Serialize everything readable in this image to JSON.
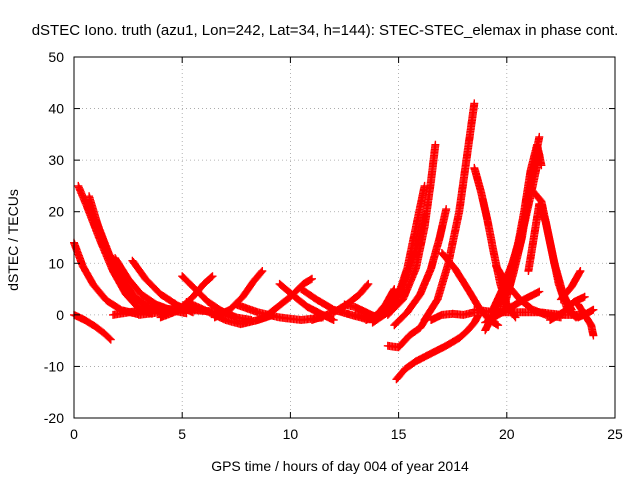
{
  "chart_data": {
    "type": "scatter",
    "title": "dSTEC Iono. truth (azu1, Lon=242, Lat=34, h=144): STEC-STEC_elemax in phase cont.",
    "xlabel": "GPS time / hours of day 004 of year 2014",
    "ylabel": "dSTEC  / TECUs",
    "xlim": [
      0,
      25
    ],
    "ylim": [
      -20,
      50
    ],
    "xticks": [
      "0",
      "5",
      "10",
      "15",
      "20",
      "25"
    ],
    "yticks": [
      "-20",
      "-10",
      "0",
      "10",
      "20",
      "30",
      "40",
      "50"
    ],
    "xtick_values": [
      0,
      5,
      10,
      15,
      20,
      25
    ],
    "ytick_values": [
      -20,
      -10,
      0,
      10,
      20,
      30,
      40,
      50
    ],
    "grid": true,
    "marker": "+",
    "color": "#ff0000",
    "series": [
      {
        "points": [
          [
            0.0,
            0.0
          ],
          [
            0.5,
            -1.0
          ],
          [
            1.0,
            -2.3
          ],
          [
            1.4,
            -3.6
          ],
          [
            1.7,
            -4.8
          ]
        ]
      },
      {
        "points": [
          [
            0.0,
            14.0
          ],
          [
            0.4,
            9.5
          ],
          [
            0.9,
            5.8
          ],
          [
            1.5,
            2.8
          ],
          [
            2.2,
            0.9
          ],
          [
            3.0,
            0.1
          ]
        ]
      },
      {
        "points": [
          [
            0.2,
            25.0
          ],
          [
            0.6,
            21.0
          ],
          [
            1.2,
            14.5
          ],
          [
            1.8,
            8.5
          ],
          [
            2.4,
            4.0
          ],
          [
            3.0,
            1.2
          ],
          [
            3.6,
            0.2
          ]
        ]
      },
      {
        "points": [
          [
            0.7,
            23.0
          ],
          [
            1.2,
            16.0
          ],
          [
            1.8,
            9.5
          ],
          [
            2.5,
            4.8
          ],
          [
            3.2,
            2.0
          ],
          [
            4.0,
            0.6
          ]
        ]
      },
      {
        "points": [
          [
            1.0,
            18.5
          ],
          [
            1.6,
            12.0
          ],
          [
            2.2,
            7.0
          ],
          [
            2.8,
            3.5
          ],
          [
            3.5,
            1.3
          ],
          [
            4.2,
            0.3
          ]
        ]
      },
      {
        "points": [
          [
            1.9,
            11.0
          ],
          [
            2.5,
            7.0
          ],
          [
            3.1,
            4.0
          ],
          [
            3.8,
            2.0
          ],
          [
            4.5,
            0.9
          ],
          [
            5.2,
            0.3
          ]
        ]
      },
      {
        "points": [
          [
            2.7,
            10.5
          ],
          [
            3.3,
            7.0
          ],
          [
            4.0,
            4.0
          ],
          [
            4.8,
            1.8
          ],
          [
            5.5,
            0.5
          ]
        ]
      },
      {
        "points": [
          [
            1.8,
            0.0
          ],
          [
            3.0,
            0.8
          ],
          [
            4.0,
            1.2
          ],
          [
            5.0,
            1.0
          ],
          [
            6.0,
            0.8
          ],
          [
            7.0,
            0.5
          ]
        ]
      },
      {
        "points": [
          [
            3.0,
            0.0
          ],
          [
            4.0,
            0.5
          ],
          [
            5.0,
            1.5
          ],
          [
            6.0,
            0.8
          ],
          [
            7.0,
            0.2
          ]
        ]
      },
      {
        "points": [
          [
            4.0,
            -0.5
          ],
          [
            4.8,
            0.8
          ],
          [
            5.5,
            3.5
          ],
          [
            6.0,
            6.0
          ],
          [
            6.4,
            7.5
          ]
        ]
      },
      {
        "points": [
          [
            5.0,
            7.5
          ],
          [
            5.6,
            5.0
          ],
          [
            6.2,
            2.5
          ],
          [
            6.8,
            0.8
          ],
          [
            7.5,
            -0.5
          ],
          [
            8.2,
            -1.0
          ]
        ]
      },
      {
        "points": [
          [
            5.2,
            2.5
          ],
          [
            6.0,
            1.0
          ],
          [
            7.0,
            -1.0
          ],
          [
            7.7,
            -1.8
          ],
          [
            8.5,
            -1.0
          ],
          [
            9.2,
            0.0
          ]
        ]
      },
      {
        "points": [
          [
            6.5,
            -0.5
          ],
          [
            7.2,
            1.0
          ],
          [
            7.8,
            3.5
          ],
          [
            8.3,
            6.5
          ],
          [
            8.7,
            8.5
          ]
        ]
      },
      {
        "points": [
          [
            7.5,
            2.0
          ],
          [
            8.5,
            0.5
          ],
          [
            9.5,
            -0.5
          ],
          [
            10.5,
            -1.0
          ],
          [
            11.5,
            -0.5
          ]
        ]
      },
      {
        "points": [
          [
            8.8,
            -0.5
          ],
          [
            9.4,
            1.5
          ],
          [
            10.0,
            3.5
          ],
          [
            10.6,
            6.0
          ],
          [
            11.0,
            7.0
          ]
        ]
      },
      {
        "points": [
          [
            9.5,
            6.0
          ],
          [
            10.2,
            3.5
          ],
          [
            10.8,
            1.5
          ],
          [
            11.5,
            0.0
          ],
          [
            12.0,
            -1.0
          ]
        ]
      },
      {
        "points": [
          [
            10.5,
            5.0
          ],
          [
            11.2,
            3.0
          ],
          [
            12.0,
            1.0
          ],
          [
            12.8,
            0.0
          ],
          [
            13.5,
            -0.8
          ]
        ]
      },
      {
        "points": [
          [
            11.0,
            -1.0
          ],
          [
            12.0,
            0.5
          ],
          [
            12.6,
            2.0
          ],
          [
            13.2,
            4.0
          ],
          [
            13.6,
            6.0
          ]
        ]
      },
      {
        "points": [
          [
            12.5,
            2.0
          ],
          [
            13.0,
            1.5
          ],
          [
            13.5,
            0.5
          ],
          [
            14.0,
            -0.5
          ],
          [
            14.5,
            0.8
          ]
        ]
      },
      {
        "points": [
          [
            13.5,
            -1.0
          ],
          [
            14.0,
            0.0
          ],
          [
            14.4,
            2.0
          ],
          [
            14.8,
            5.0
          ]
        ]
      },
      {
        "points": [
          [
            13.0,
            0.0
          ],
          [
            13.8,
            -0.5
          ],
          [
            14.5,
            1.0
          ],
          [
            15.0,
            4.0
          ],
          [
            15.4,
            9.0
          ],
          [
            15.7,
            15.0
          ],
          [
            16.0,
            21.0
          ],
          [
            16.2,
            25.0
          ]
        ]
      },
      {
        "points": [
          [
            13.8,
            -1.5
          ],
          [
            14.5,
            0.5
          ],
          [
            15.0,
            4.0
          ],
          [
            15.5,
            9.0
          ],
          [
            15.9,
            14.0
          ],
          [
            16.2,
            19.5
          ]
        ]
      },
      {
        "points": [
          [
            14.5,
            0.0
          ],
          [
            15.2,
            3.0
          ],
          [
            15.8,
            9.0
          ],
          [
            16.2,
            17.0
          ],
          [
            16.5,
            26.0
          ],
          [
            16.7,
            33.0
          ]
        ]
      },
      {
        "points": [
          [
            14.8,
            -2.0
          ],
          [
            15.4,
            0.5
          ],
          [
            16.0,
            4.0
          ],
          [
            16.5,
            9.0
          ],
          [
            16.9,
            15.0
          ],
          [
            17.2,
            20.5
          ]
        ]
      },
      {
        "points": [
          [
            16.2,
            -1.0
          ],
          [
            16.8,
            3.0
          ],
          [
            17.3,
            10.0
          ],
          [
            17.8,
            20.0
          ],
          [
            18.2,
            32.0
          ],
          [
            18.5,
            41.0
          ]
        ]
      },
      {
        "points": [
          [
            14.5,
            -6.0
          ],
          [
            15.0,
            -6.3
          ],
          [
            15.5,
            -4.0
          ],
          [
            16.0,
            -2.5
          ],
          [
            16.3,
            -0.5
          ]
        ]
      },
      {
        "points": [
          [
            14.9,
            -12.5
          ],
          [
            15.3,
            -10.5
          ],
          [
            15.8,
            -9.0
          ],
          [
            16.5,
            -7.5
          ],
          [
            17.2,
            -6.0
          ],
          [
            17.8,
            -4.5
          ],
          [
            18.2,
            -3.0
          ],
          [
            18.5,
            -1.5
          ],
          [
            18.7,
            0.0
          ]
        ]
      },
      {
        "points": [
          [
            16.5,
            -1.0
          ],
          [
            17.0,
            0.0
          ],
          [
            17.5,
            0.2
          ],
          [
            18.0,
            0.0
          ],
          [
            18.5,
            0.5
          ]
        ]
      },
      {
        "points": [
          [
            17.0,
            12.0
          ],
          [
            17.6,
            9.0
          ],
          [
            18.2,
            5.0
          ],
          [
            18.7,
            1.5
          ],
          [
            19.2,
            -1.0
          ],
          [
            19.6,
            -2.0
          ]
        ]
      },
      {
        "points": [
          [
            18.5,
            28.5
          ],
          [
            18.8,
            24.0
          ],
          [
            19.1,
            18.5
          ],
          [
            19.4,
            12.0
          ],
          [
            19.7,
            6.0
          ],
          [
            20.0,
            2.0
          ],
          [
            20.4,
            -0.5
          ]
        ]
      },
      {
        "points": [
          [
            19.0,
            -3.0
          ],
          [
            19.5,
            1.0
          ],
          [
            20.0,
            6.0
          ],
          [
            20.4,
            12.0
          ],
          [
            20.8,
            18.0
          ]
        ]
      },
      {
        "points": [
          [
            19.3,
            0.5
          ],
          [
            19.8,
            5.0
          ],
          [
            20.3,
            10.5
          ],
          [
            20.8,
            17.5
          ],
          [
            21.2,
            25.0
          ],
          [
            21.5,
            31.0
          ]
        ]
      },
      {
        "points": [
          [
            19.8,
            0.5
          ],
          [
            20.3,
            8.0
          ],
          [
            20.7,
            15.0
          ],
          [
            21.0,
            23.0
          ],
          [
            21.3,
            30.0
          ],
          [
            21.5,
            34.5
          ]
        ]
      },
      {
        "points": [
          [
            20.0,
            4.0
          ],
          [
            20.4,
            11.0
          ],
          [
            20.8,
            20.0
          ],
          [
            21.1,
            28.0
          ],
          [
            21.4,
            33.0
          ],
          [
            21.6,
            29.0
          ]
        ]
      },
      {
        "points": [
          [
            21.2,
            24.0
          ],
          [
            21.6,
            22.0
          ],
          [
            22.0,
            14.0
          ],
          [
            22.4,
            6.0
          ],
          [
            22.8,
            1.0
          ],
          [
            23.2,
            -0.5
          ]
        ]
      },
      {
        "points": [
          [
            21.0,
            8.5
          ],
          [
            21.5,
            21.5
          ],
          [
            21.8,
            18.0
          ],
          [
            22.2,
            10.0
          ],
          [
            22.6,
            4.0
          ],
          [
            23.0,
            1.0
          ]
        ]
      },
      {
        "points": [
          [
            19.5,
            9.5
          ],
          [
            20.0,
            6.0
          ],
          [
            20.6,
            3.0
          ],
          [
            21.2,
            1.0
          ],
          [
            21.8,
            0.0
          ],
          [
            22.5,
            -0.5
          ]
        ]
      },
      {
        "points": [
          [
            18.5,
            1.0
          ],
          [
            19.5,
            0.5
          ],
          [
            20.5,
            0.5
          ],
          [
            21.5,
            0.5
          ],
          [
            22.5,
            0.0
          ],
          [
            23.5,
            0.0
          ]
        ]
      },
      {
        "points": [
          [
            19.0,
            -1.5
          ],
          [
            20.0,
            1.0
          ],
          [
            20.8,
            3.0
          ],
          [
            21.5,
            4.5
          ]
        ]
      },
      {
        "points": [
          [
            22.5,
            3.0
          ],
          [
            23.0,
            5.5
          ],
          [
            23.4,
            8.5
          ]
        ]
      },
      {
        "points": [
          [
            22.0,
            -1.0
          ],
          [
            22.6,
            0.5
          ],
          [
            23.1,
            2.5
          ],
          [
            23.6,
            3.5
          ]
        ]
      },
      {
        "points": [
          [
            23.3,
            2.0
          ],
          [
            23.6,
            0.0
          ],
          [
            23.9,
            -2.0
          ],
          [
            24.0,
            -4.0
          ]
        ]
      },
      {
        "points": [
          [
            22.8,
            1.0
          ],
          [
            23.3,
            -0.5
          ],
          [
            23.8,
            0.5
          ],
          [
            24.0,
            1.0
          ]
        ]
      }
    ]
  }
}
